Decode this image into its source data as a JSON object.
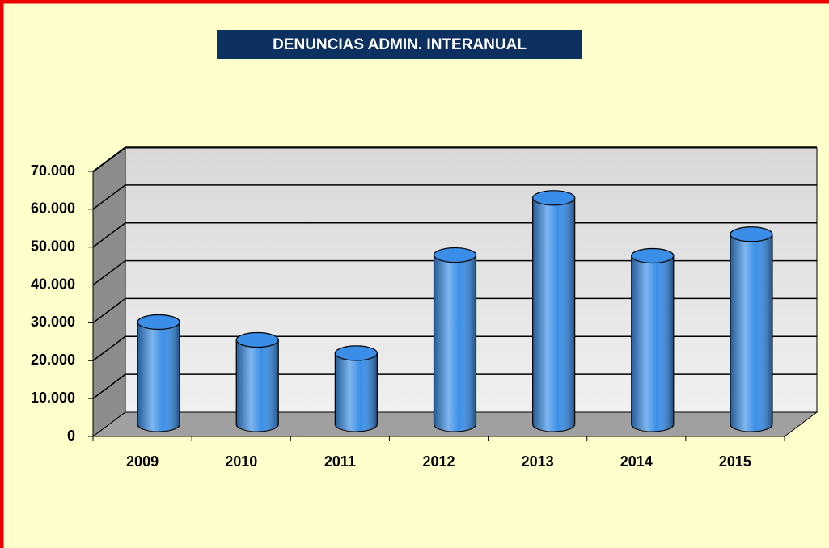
{
  "chart_data": {
    "type": "bar3d",
    "title": "DENUNCIAS ADMIN. INTERANUAL",
    "categories": [
      "2009",
      "2010",
      "2011",
      "2012",
      "2013",
      "2014",
      "2015"
    ],
    "values": [
      27000,
      22300,
      18800,
      44700,
      59800,
      44500,
      50200
    ],
    "color": "#3a8ee8",
    "ylim": [
      0,
      70000
    ],
    "yticks": [
      0,
      {
        "value": 10000,
        "label": "10.000"
      },
      {
        "value": 20000,
        "label": "20.000"
      },
      {
        "value": 30000,
        "label": "30.000"
      },
      {
        "value": 40000,
        "label": "40.000"
      },
      {
        "value": 50000,
        "label": "50.000"
      },
      {
        "value": 60000,
        "label": "60.000"
      },
      {
        "value": 70000,
        "label": "70.000"
      }
    ],
    "grid": true
  }
}
